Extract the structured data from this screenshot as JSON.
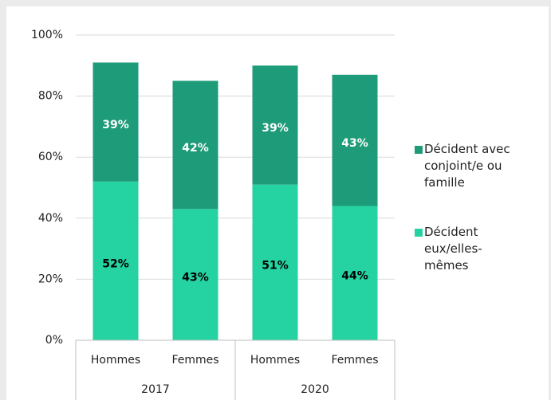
{
  "chart_data": {
    "type": "stacked_bar",
    "categories": [
      "Hommes",
      "Femmes",
      "Hommes",
      "Femmes"
    ],
    "groups": [
      "2017",
      "2020"
    ],
    "series": [
      {
        "name": "Décident eux/elles-mêmes",
        "color": "#24d3a1",
        "values": [
          52,
          43,
          51,
          44
        ],
        "value_labels": [
          "52%",
          "43%",
          "51%",
          "44%"
        ]
      },
      {
        "name": "Décident avec conjoint/e ou famille",
        "color": "#1e9b78",
        "values": [
          39,
          42,
          39,
          43
        ],
        "value_labels": [
          "39%",
          "42%",
          "39%",
          "43%"
        ]
      }
    ],
    "ylim": [
      0,
      100
    ],
    "yticks": [
      {
        "value": 0,
        "label": "0%"
      },
      {
        "value": 20,
        "label": "20%"
      },
      {
        "value": 40,
        "label": "40%"
      },
      {
        "value": 60,
        "label": "60%"
      },
      {
        "value": 80,
        "label": "80%"
      },
      {
        "value": 100,
        "label": "100%"
      }
    ],
    "grid": true,
    "legend": "right"
  }
}
